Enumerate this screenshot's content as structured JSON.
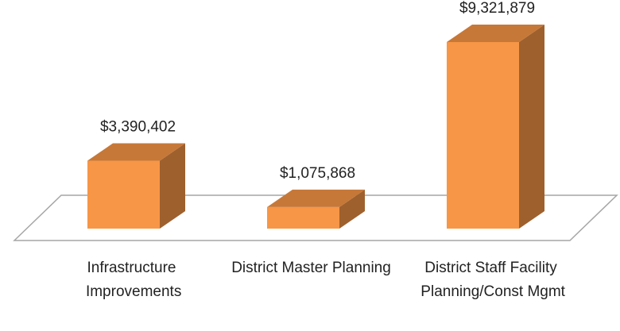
{
  "chart_data": {
    "type": "bar3d",
    "categories": [
      "Infrastructure Improvements",
      "District Master Planning",
      "District Staff Facility Planning/Const Mgmt"
    ],
    "values": [
      3390402,
      1075868,
      9321879
    ],
    "value_labels": [
      "$3,390,402",
      "$1,075,868",
      "$9,321,879"
    ],
    "color": "#f79646"
  }
}
